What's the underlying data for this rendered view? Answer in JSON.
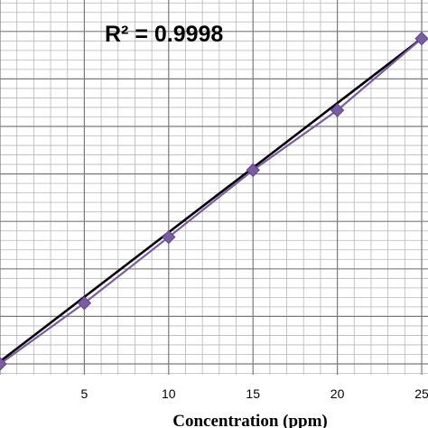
{
  "chart_data": {
    "type": "scatter",
    "title": "",
    "xlabel": "Concentration (ppm)",
    "ylabel": "",
    "xlim": [
      0,
      25
    ],
    "x_ticks": [
      "5",
      "10",
      "15",
      "20",
      "25"
    ],
    "grid": true,
    "series": [
      {
        "x": [
          0,
          5,
          10,
          15,
          20,
          25
        ],
        "y": [
          0.0,
          1.28,
          2.67,
          4.08,
          5.34,
          6.85
        ],
        "color": "#7b5aa6",
        "marker": "diamond"
      }
    ],
    "trendline": {
      "type": "linear",
      "x": [
        0,
        25
      ],
      "y": [
        0.05,
        6.85
      ],
      "color": "#000000",
      "annotation": "R² = 0.9998"
    }
  }
}
